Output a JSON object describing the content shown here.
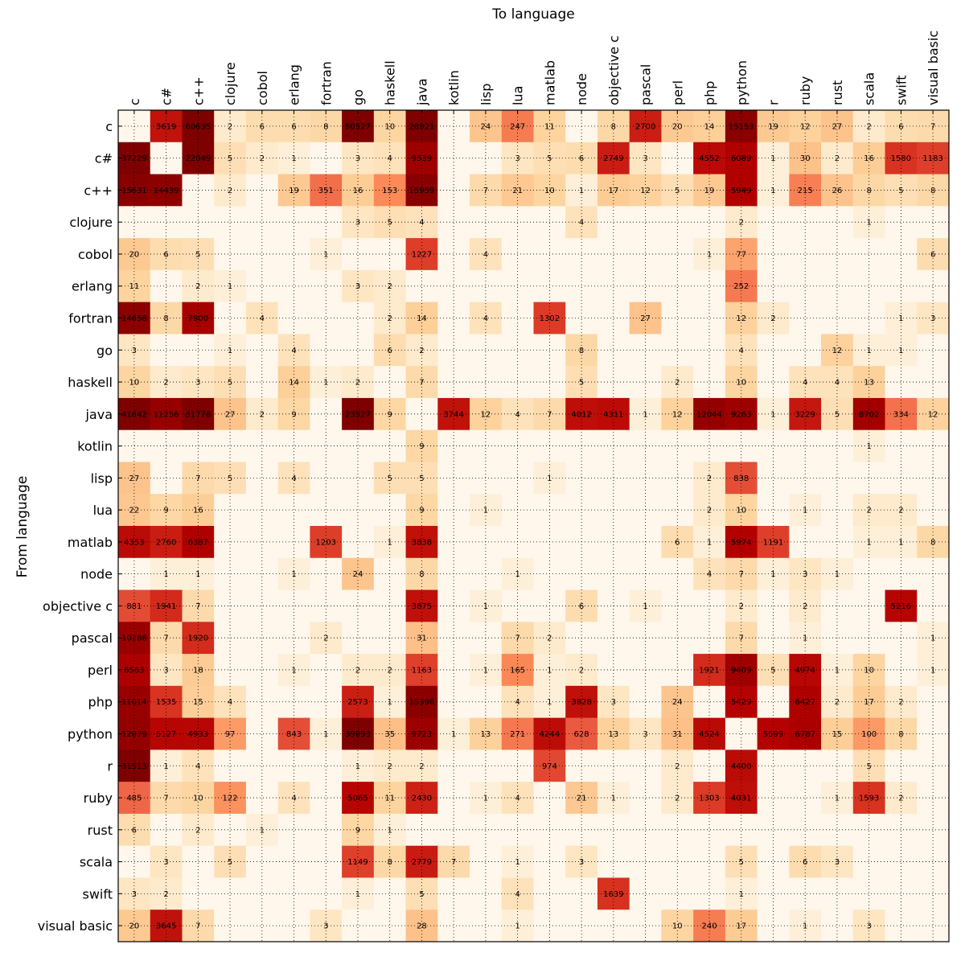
{
  "chart_data": {
    "type": "heatmap",
    "xlabel": "To language",
    "ylabel": "From language",
    "colormap": "OrRd",
    "colors": {
      "low": "#fff7ec",
      "mid": "#fc8d59",
      "high": "#7f0000"
    },
    "grid": true,
    "columns": [
      "c",
      "c#",
      "c++",
      "clojure",
      "cobol",
      "erlang",
      "fortran",
      "go",
      "haskell",
      "java",
      "kotlin",
      "lisp",
      "lua",
      "matlab",
      "node",
      "objective c",
      "pascal",
      "perl",
      "php",
      "python",
      "r",
      "ruby",
      "rust",
      "scala",
      "swift",
      "visual basic"
    ],
    "rows": [
      "c",
      "c#",
      "c++",
      "clojure",
      "cobol",
      "erlang",
      "fortran",
      "go",
      "haskell",
      "java",
      "kotlin",
      "lisp",
      "lua",
      "matlab",
      "node",
      "objective c",
      "pascal",
      "perl",
      "php",
      "python",
      "r",
      "ruby",
      "rust",
      "scala",
      "swift",
      "visual basic"
    ],
    "values": [
      [
        null,
        3619,
        60635,
        2,
        6,
        6,
        8,
        50527,
        10,
        28921,
        null,
        24,
        247,
        11,
        null,
        8,
        2700,
        20,
        14,
        15153,
        19,
        12,
        27,
        2,
        6,
        7
      ],
      [
        37229,
        null,
        22049,
        5,
        2,
        1,
        null,
        3,
        4,
        9539,
        null,
        null,
        3,
        5,
        6,
        2749,
        3,
        null,
        4552,
        6089,
        1,
        30,
        2,
        16,
        1580,
        1183
      ],
      [
        15631,
        14439,
        null,
        2,
        null,
        19,
        351,
        16,
        153,
        15959,
        null,
        7,
        21,
        10,
        1,
        17,
        12,
        5,
        19,
        5949,
        1,
        215,
        26,
        8,
        5,
        8
      ],
      [
        null,
        null,
        null,
        null,
        null,
        null,
        null,
        3,
        5,
        4,
        null,
        null,
        null,
        null,
        4,
        null,
        null,
        null,
        null,
        2,
        null,
        null,
        null,
        1,
        null,
        null
      ],
      [
        20,
        6,
        5,
        null,
        null,
        null,
        1,
        null,
        null,
        1227,
        null,
        4,
        null,
        null,
        null,
        null,
        null,
        null,
        1,
        77,
        null,
        null,
        null,
        null,
        null,
        6
      ],
      [
        11,
        null,
        2,
        1,
        null,
        null,
        null,
        3,
        2,
        null,
        null,
        null,
        null,
        null,
        null,
        null,
        null,
        null,
        null,
        252,
        null,
        null,
        null,
        null,
        null,
        null
      ],
      [
        14658,
        8,
        7900,
        null,
        4,
        null,
        null,
        null,
        2,
        14,
        null,
        4,
        null,
        1302,
        null,
        null,
        27,
        null,
        null,
        12,
        2,
        null,
        null,
        null,
        1,
        3
      ],
      [
        3,
        null,
        null,
        1,
        null,
        4,
        null,
        null,
        6,
        2,
        null,
        null,
        null,
        null,
        8,
        null,
        null,
        null,
        null,
        4,
        null,
        null,
        12,
        1,
        1,
        null
      ],
      [
        10,
        2,
        3,
        5,
        null,
        14,
        1,
        2,
        null,
        7,
        null,
        null,
        null,
        null,
        5,
        null,
        null,
        2,
        null,
        10,
        null,
        4,
        4,
        13,
        null,
        null
      ],
      [
        41642,
        11256,
        31778,
        27,
        2,
        9,
        null,
        23527,
        9,
        null,
        3744,
        12,
        4,
        7,
        4012,
        4311,
        1,
        12,
        12044,
        9263,
        1,
        3229,
        5,
        8702,
        334,
        12
      ],
      [
        null,
        null,
        null,
        null,
        null,
        null,
        null,
        null,
        null,
        9,
        null,
        null,
        null,
        null,
        null,
        null,
        null,
        null,
        null,
        null,
        null,
        null,
        null,
        1,
        null,
        null
      ],
      [
        27,
        null,
        7,
        5,
        null,
        4,
        null,
        null,
        5,
        5,
        null,
        null,
        null,
        1,
        null,
        null,
        null,
        null,
        2,
        838,
        null,
        null,
        null,
        null,
        null,
        null
      ],
      [
        22,
        9,
        16,
        null,
        null,
        null,
        null,
        null,
        null,
        9,
        null,
        1,
        null,
        null,
        null,
        null,
        null,
        null,
        2,
        10,
        null,
        1,
        null,
        2,
        2,
        null
      ],
      [
        4353,
        2760,
        6387,
        null,
        null,
        null,
        1203,
        null,
        1,
        3838,
        null,
        null,
        null,
        null,
        null,
        null,
        null,
        6,
        1,
        5974,
        1191,
        null,
        null,
        1,
        1,
        8
      ],
      [
        null,
        1,
        1,
        null,
        null,
        1,
        null,
        24,
        null,
        8,
        null,
        null,
        1,
        null,
        null,
        null,
        null,
        null,
        4,
        7,
        1,
        3,
        1,
        null,
        null,
        null
      ],
      [
        881,
        1941,
        7,
        null,
        null,
        null,
        null,
        null,
        null,
        3875,
        null,
        1,
        null,
        null,
        6,
        null,
        1,
        null,
        null,
        2,
        null,
        2,
        null,
        null,
        5216,
        null
      ],
      [
        10286,
        7,
        1920,
        null,
        null,
        null,
        2,
        null,
        null,
        31,
        null,
        null,
        7,
        2,
        null,
        null,
        null,
        null,
        null,
        7,
        null,
        1,
        null,
        null,
        null,
        1
      ],
      [
        6563,
        3,
        18,
        null,
        null,
        1,
        null,
        2,
        2,
        1163,
        null,
        1,
        165,
        1,
        2,
        null,
        null,
        null,
        1921,
        9409,
        5,
        4974,
        1,
        10,
        null,
        1
      ],
      [
        11014,
        1535,
        15,
        4,
        null,
        null,
        null,
        2573,
        1,
        15396,
        null,
        null,
        4,
        1,
        3828,
        3,
        null,
        24,
        null,
        5429,
        null,
        6427,
        2,
        17,
        2,
        null
      ],
      [
        12079,
        5127,
        4933,
        97,
        null,
        843,
        1,
        39893,
        35,
        9723,
        1,
        13,
        271,
        4244,
        628,
        13,
        3,
        31,
        4524,
        null,
        5599,
        6787,
        15,
        100,
        8,
        null
      ],
      [
        31513,
        1,
        4,
        null,
        null,
        null,
        null,
        1,
        2,
        2,
        null,
        null,
        null,
        974,
        null,
        null,
        null,
        2,
        null,
        4400,
        null,
        null,
        null,
        5,
        null,
        null
      ],
      [
        485,
        7,
        10,
        122,
        null,
        4,
        null,
        5065,
        11,
        2430,
        null,
        1,
        4,
        null,
        21,
        1,
        null,
        2,
        1303,
        4031,
        null,
        null,
        1,
        1593,
        2,
        null
      ],
      [
        6,
        null,
        2,
        null,
        1,
        null,
        null,
        9,
        1,
        null,
        null,
        null,
        null,
        null,
        null,
        null,
        null,
        null,
        null,
        null,
        null,
        null,
        null,
        null,
        null,
        null
      ],
      [
        null,
        3,
        null,
        5,
        null,
        null,
        null,
        1149,
        8,
        2779,
        7,
        null,
        1,
        null,
        3,
        null,
        null,
        null,
        null,
        5,
        null,
        6,
        3,
        null,
        null,
        null
      ],
      [
        3,
        2,
        null,
        null,
        null,
        null,
        null,
        1,
        null,
        5,
        null,
        null,
        4,
        null,
        null,
        1639,
        null,
        null,
        null,
        1,
        null,
        null,
        null,
        null,
        null,
        null
      ],
      [
        20,
        3645,
        7,
        null,
        null,
        null,
        3,
        null,
        null,
        28,
        null,
        null,
        1,
        null,
        null,
        null,
        null,
        10,
        240,
        17,
        null,
        1,
        null,
        3,
        null,
        null
      ]
    ]
  }
}
